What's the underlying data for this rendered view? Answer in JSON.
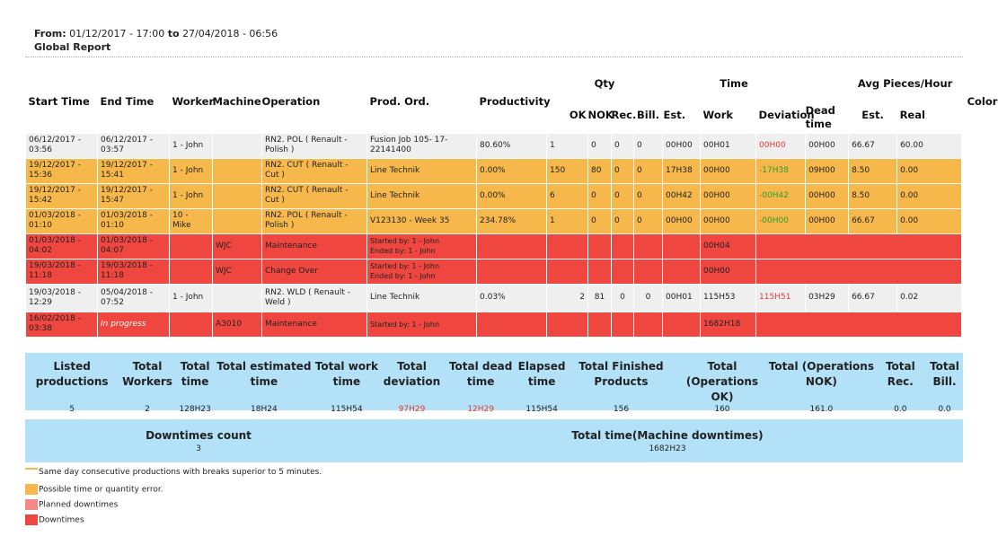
{
  "header": {
    "from_label": "From:",
    "from_date": "01/12/2017 - 17:00",
    "to_label": "to",
    "to_date": "27/04/2018 - 06:56",
    "title": "Global Report"
  },
  "columns": {
    "start_time": "Start Time",
    "end_time": "End Time",
    "worker": "Worker",
    "machine": "Machine",
    "operation": "Operation",
    "prod_ord": "Prod. Ord.",
    "productivity": "Productivity",
    "qty": "Qty",
    "qty_ok": "OK",
    "qty_nok": "NOK",
    "qty_rec": "Rec.",
    "qty_bill": "Bill.",
    "time": "Time",
    "time_est": "Est.",
    "time_work": "Work",
    "time_dev": "Deviation",
    "dead_time": "Dead time",
    "avg": "Avg Pieces/Hour",
    "avg_est": "Est.",
    "avg_real": "Real",
    "color": "Color"
  },
  "rows": [
    {
      "start": "06/12/2017 - 03:56",
      "end": "06/12/2017 - 03:57",
      "worker": "1 - John",
      "machine": "",
      "operation": "RN2. POL ( Renault - Polish )",
      "order": "Fusion Job 105- 17-22141400",
      "productivity": "80.60%",
      "ok": "1",
      "nok": "0",
      "rec": "0",
      "bill": "0",
      "est": "00H00",
      "work": "00H01",
      "dev": "00H00",
      "dead": "00H00",
      "avg_est": "66.67",
      "avg_real": "60.00",
      "color": ""
    },
    {
      "start": "19/12/2017 - 15:36",
      "end": "19/12/2017 - 15:41",
      "worker": "1 - John",
      "machine": "",
      "operation": "RN2. CUT ( Renault - Cut )",
      "order": "Line Technik",
      "productivity": "0.00%",
      "ok": "150",
      "nok": "80",
      "rec": "0",
      "bill": "0",
      "est": "17H38",
      "work": "00H00",
      "dev": "-17H38",
      "dead": "09H00",
      "avg_est": "8.50",
      "avg_real": "0.00",
      "color": ""
    },
    {
      "start": "19/12/2017 - 15:42",
      "end": "19/12/2017 - 15:47",
      "worker": "1 - John",
      "machine": "",
      "operation": "RN2. CUT ( Renault - Cut )",
      "order": "Line Technik",
      "productivity": "0.00%",
      "ok": "6",
      "nok": "0",
      "rec": "0",
      "bill": "0",
      "est": "00H42",
      "work": "00H00",
      "dev": "-00H42",
      "dead": "00H00",
      "avg_est": "8.50",
      "avg_real": "0.00",
      "color": ""
    },
    {
      "start": "01/03/2018 - 01:10",
      "end": "01/03/2018 - 01:10",
      "worker": "10 - Mike",
      "machine": "",
      "operation": "RN2. POL ( Renault - Polish )",
      "order": "V123130 - Week 35",
      "productivity": "234.78%",
      "ok": "1",
      "nok": "0",
      "rec": "0",
      "bill": "0",
      "est": "00H00",
      "work": "00H00",
      "dev": "-00H00",
      "dead": "00H00",
      "avg_est": "66.67",
      "avg_real": "0.00",
      "color": ""
    },
    {
      "start": "01/03/2018 - 04:02",
      "end": "01/03/2018 - 04:07",
      "machine": "WJC",
      "operation": "Maintenance",
      "started_by": "Started by: 1 - John",
      "ended_by": "Ended by: 1 - John",
      "work": "00H04"
    },
    {
      "start": "19/03/2018 - 11:18",
      "end": "19/03/2018 - 11:18",
      "machine": "WJC",
      "operation": "Change Over",
      "started_by": "Started by: 1 - John",
      "ended_by": "Ended by: 1 - John",
      "work": "00H00"
    },
    {
      "start": "19/03/2018 - 12:29",
      "end": "05/04/2018 - 07:52",
      "worker": "1 - John",
      "machine": "",
      "operation": "RN2. WLD ( Renault - Weld )",
      "order": "Line Technik",
      "productivity": "0.03%",
      "ok": "2",
      "nok": "81",
      "rec": "0",
      "bill": "0",
      "est": "00H01",
      "work": "115H53",
      "dev": "115H51",
      "dead": "03H29",
      "avg_est": "66.67",
      "avg_real": "0.02",
      "color": "Red"
    },
    {
      "start": "16/02/2018 - 03:38",
      "end": "In progress",
      "machine": "A3010",
      "operation": "Maintenance",
      "started_by": "Started by: 1 - John",
      "work": "1682H18"
    }
  ],
  "totals": {
    "labels": [
      "Listed productions",
      "Total Workers",
      "Total time",
      "Total estimated time",
      "Total work time",
      "Total deviation",
      "Total dead time",
      "Elapsed time",
      "Total Finished Products",
      "Total (Operations OK)",
      "Total (Operations NOK)",
      "Total Rec.",
      "Total Bill."
    ],
    "values": [
      "5",
      "2",
      "128H23",
      "18H24",
      "115H54",
      "97H29",
      "12H29",
      "115H54",
      "156",
      "160",
      "161.0",
      "0.0",
      "0.0"
    ]
  },
  "downtimes": {
    "count_label": "Downtimes count",
    "count_value": "3",
    "time_label": "Total time(Machine downtimes)",
    "time_value": "1682H23"
  },
  "legend": {
    "line": "Same day consecutive productions with breaks superior to 5 minutes.",
    "orange": "Possible time or quantity error.",
    "planned": "Planned downtimes",
    "downtimes": "Downtimes"
  },
  "colors": {
    "orange": "#f7b84b",
    "red": "#ef4640",
    "pink": "#f5898a",
    "blue": "#b3e1f7",
    "gray": "#efefef"
  }
}
